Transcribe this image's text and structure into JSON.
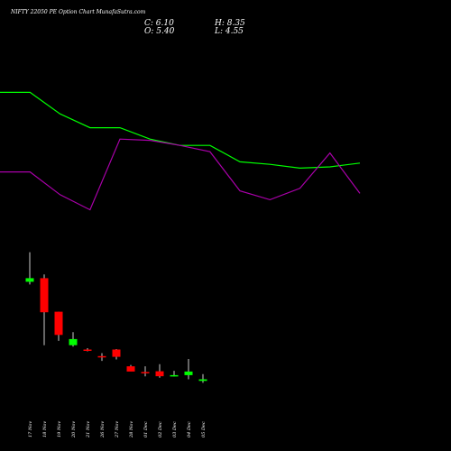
{
  "header": {
    "title": "NIFTY 22050  PE Option  Chart MunafaSutra.com",
    "close_label": "C: 6.10",
    "open_label": "O: 5.40",
    "high_label": "H: 8.35",
    "low_label": "L: 4.55"
  },
  "colors": {
    "background": "#000000",
    "up": "#00ff00",
    "down": "#ff0000",
    "line_green": "#00ff00",
    "line_purple": "#aa00aa",
    "wick": "#ffffff"
  },
  "chart_data": [
    {
      "type": "line",
      "title": "",
      "xlabel": "",
      "ylabel": "",
      "grid": false,
      "x": [
        "17 Nov",
        "18 Nov",
        "19 Nov",
        "20 Nov",
        "21 Nov",
        "26 Nov",
        "27 Nov",
        "28 Nov",
        "01 Dec",
        "02 Dec",
        "03 Dec",
        "04 Dec",
        "05 Dec"
      ],
      "ylim": [
        0,
        100
      ],
      "series": [
        {
          "color": "#00ff00",
          "values": [
            94,
            94,
            77,
            66,
            66,
            57,
            52,
            52,
            39,
            37,
            34,
            35,
            38
          ]
        },
        {
          "color": "#aa00aa",
          "values": [
            31,
            31,
            13,
            1,
            57,
            56,
            52,
            47,
            16,
            9,
            18,
            46,
            14
          ]
        }
      ]
    },
    {
      "type": "candlestick",
      "title": "",
      "xlabel": "",
      "ylabel": "",
      "grid": false,
      "categories": [
        "17 Nov",
        "18 Nov",
        "19 Nov",
        "20 Nov",
        "21 Nov",
        "26 Nov",
        "27 Nov",
        "28 Nov",
        "01 Dec",
        "02 Dec",
        "03 Dec",
        "04 Dec",
        "05 Dec"
      ],
      "ylim": [
        4.3,
        69.8
      ],
      "candles": [
        {
          "open": 49.0,
          "high": 62.0,
          "low": 47.8,
          "close": 50.6
        },
        {
          "open": 50.6,
          "high": 52.2,
          "low": 21.1,
          "close": 35.6
        },
        {
          "open": 35.8,
          "high": 35.8,
          "low": 23.0,
          "close": 25.6
        },
        {
          "open": 21.1,
          "high": 26.8,
          "low": 20.5,
          "close": 23.8
        },
        {
          "open": 19.2,
          "high": 19.8,
          "low": 18.4,
          "close": 18.6
        },
        {
          "open": 16.3,
          "high": 17.6,
          "low": 14.2,
          "close": 15.9
        },
        {
          "open": 19.2,
          "high": 19.4,
          "low": 14.8,
          "close": 16.0
        },
        {
          "open": 11.8,
          "high": 12.4,
          "low": 9.6,
          "close": 9.5
        },
        {
          "open": 9.3,
          "high": 11.8,
          "low": 7.4,
          "close": 9.0
        },
        {
          "open": 9.6,
          "high": 12.7,
          "low": 6.8,
          "close": 7.4
        },
        {
          "open": 7.6,
          "high": 9.8,
          "low": 7.3,
          "close": 7.9
        },
        {
          "open": 7.9,
          "high": 15.0,
          "low": 6.1,
          "close": 9.5
        },
        {
          "open": 5.4,
          "high": 8.35,
          "low": 4.55,
          "close": 6.1
        }
      ]
    }
  ]
}
